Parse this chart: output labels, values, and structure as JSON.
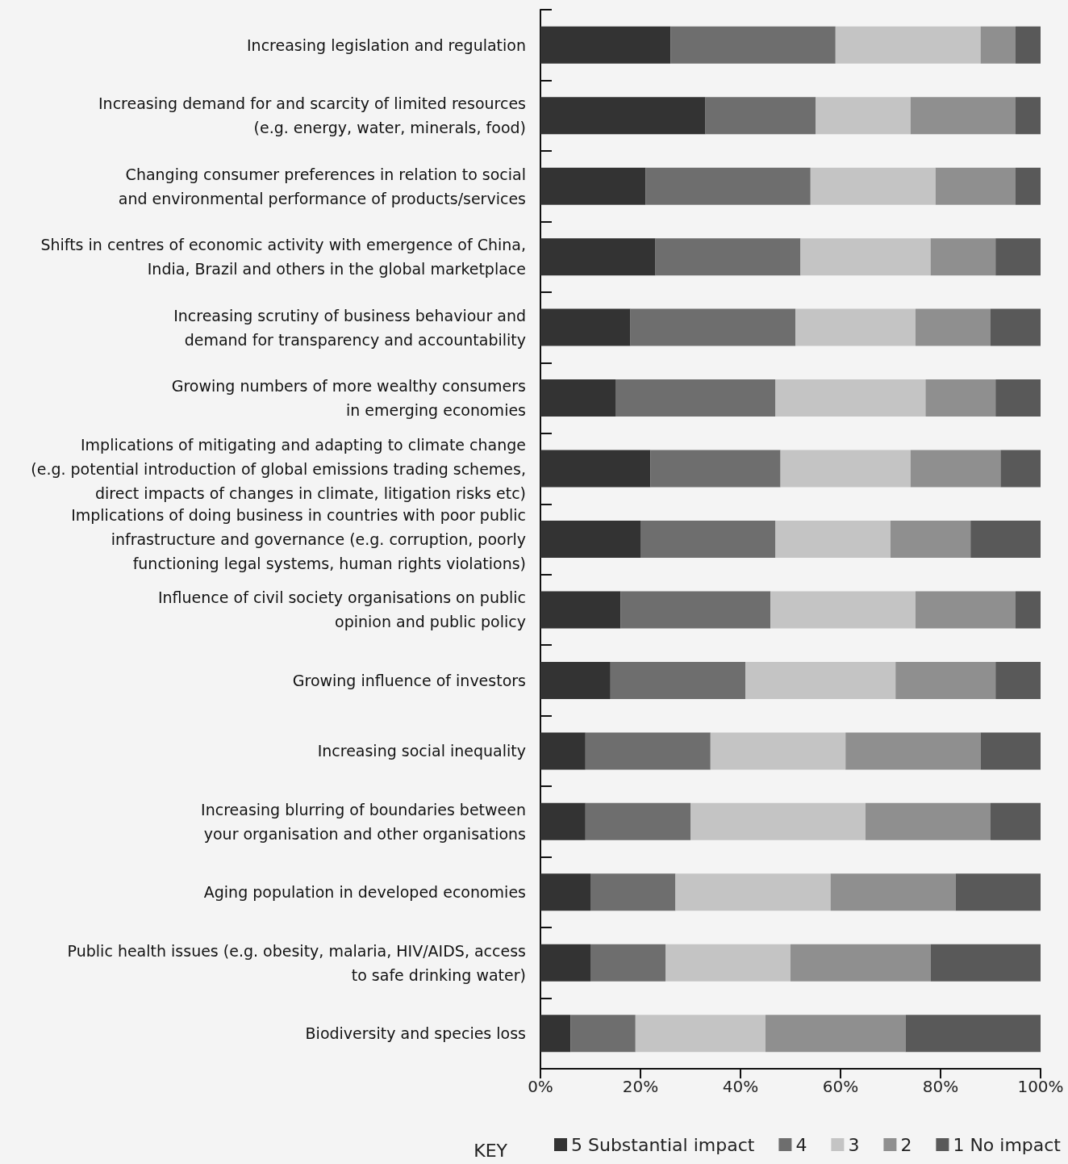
{
  "chart_data": {
    "type": "bar",
    "orientation": "horizontal",
    "stacked": true,
    "categories": [
      "Increasing legislation and regulation",
      "Increasing demand for and scarcity of limited resources\n(e.g. energy, water, minerals, food)",
      "Changing consumer preferences in relation to social\nand environmental performance of products/services",
      "Shifts in centres of economic activity with emergence of China,\nIndia, Brazil and others in the global marketplace",
      "Increasing scrutiny of business behaviour and\ndemand for transparency and accountability",
      "Growing numbers of more wealthy consumers\nin emerging economies",
      "Implications of mitigating and adapting to climate change\n(e.g. potential introduction of global emissions trading schemes,\ndirect impacts of changes in climate, litigation risks etc)",
      "Implications of doing business in countries with poor public\ninfrastructure and governance (e.g. corruption, poorly\nfunctioning legal systems, human rights violations)",
      "Influence of civil society organisations on public\nopinion and public policy",
      "Growing influence of investors",
      "Increasing social inequality",
      "Increasing blurring of boundaries between\nyour organisation and other organisations",
      "Aging population in developed economies",
      "Public health issues (e.g. obesity, malaria, HIV/AIDS, access\nto safe drinking water)",
      "Biodiversity and species loss"
    ],
    "series": [
      {
        "name": "5 Substantial impact",
        "color": "#333333",
        "values": [
          26,
          33,
          21,
          23,
          18,
          15,
          22,
          20,
          16,
          14,
          9,
          9,
          10,
          10,
          6
        ]
      },
      {
        "name": "4",
        "color": "#6e6e6e",
        "values": [
          33,
          22,
          33,
          29,
          33,
          32,
          26,
          27,
          30,
          27,
          25,
          21,
          17,
          15,
          13
        ]
      },
      {
        "name": "3",
        "color": "#c4c4c4",
        "values": [
          29,
          19,
          25,
          26,
          24,
          30,
          26,
          23,
          29,
          30,
          27,
          35,
          31,
          25,
          26
        ]
      },
      {
        "name": "2",
        "color": "#8f8f8f",
        "values": [
          7,
          21,
          16,
          13,
          15,
          14,
          18,
          16,
          20,
          20,
          27,
          25,
          25,
          28,
          28
        ]
      },
      {
        "name": "1 No impact",
        "color": "#595959",
        "values": [
          5,
          5,
          5,
          9,
          10,
          9,
          8,
          14,
          5,
          9,
          12,
          10,
          17,
          22,
          27
        ]
      }
    ],
    "legend_title": "KEY",
    "legend": "bottom right",
    "grid": false,
    "xlim": [
      0,
      100
    ],
    "xticks": [
      {
        "value": 0,
        "label": "0%"
      },
      {
        "value": 20,
        "label": "20%"
      },
      {
        "value": 40,
        "label": "40%"
      },
      {
        "value": 60,
        "label": "60%"
      },
      {
        "value": 80,
        "label": "80%"
      },
      {
        "value": 100,
        "label": "100%"
      }
    ]
  }
}
